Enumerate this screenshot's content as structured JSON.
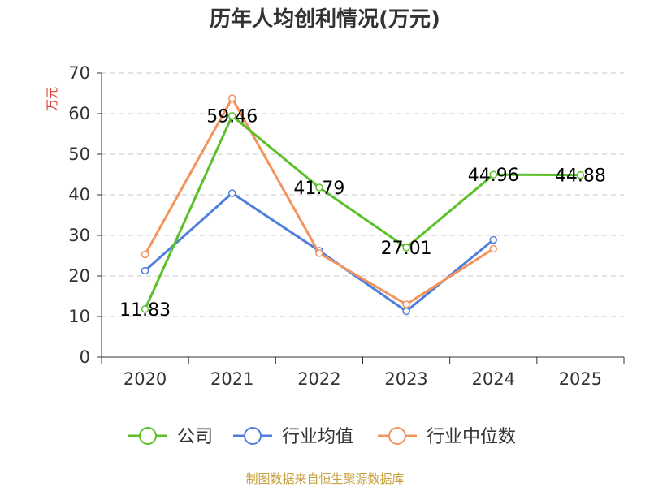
{
  "chart_data": {
    "type": "line",
    "title": "历年人均创利情况(万元)",
    "ylabel": "万元",
    "xlabel": "",
    "categories": [
      "2020",
      "2021",
      "2022",
      "2023",
      "2024",
      "2025"
    ],
    "ylim": [
      0,
      70
    ],
    "yticks": [
      0,
      10,
      20,
      30,
      40,
      50,
      60,
      70
    ],
    "grid": true,
    "legend_position": "bottom",
    "series": [
      {
        "name": "公司",
        "color": "#5cc02a",
        "values": [
          11.83,
          59.46,
          41.79,
          27.01,
          44.96,
          44.88
        ],
        "labels": [
          "11.83",
          "59.46",
          "41.79",
          "27.01",
          "44.96",
          "44.88"
        ]
      },
      {
        "name": "行业均值",
        "color": "#4f7fdc",
        "values": [
          21.3,
          40.4,
          26.2,
          11.3,
          28.9,
          null
        ]
      },
      {
        "name": "行业中位数",
        "color": "#f5935c",
        "values": [
          25.3,
          63.8,
          25.6,
          13.0,
          26.7,
          null
        ]
      }
    ],
    "source": "制图数据来自恒生聚源数据库"
  }
}
